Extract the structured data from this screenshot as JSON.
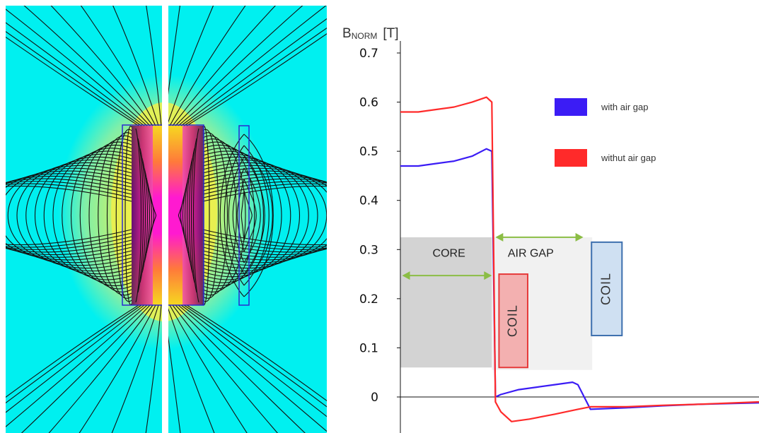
{
  "figure": {
    "panel_left": "magnetic flux density map with field lines",
    "panel_right": "normalized flux density profile"
  },
  "colors": {
    "with_gap": "#3b1cf5",
    "without_gap": "#ff2a2a",
    "core_region": "#d3d3d3",
    "airgap_region": "#f1f1f1",
    "coil_red_fill": "#f3b0b0",
    "coil_red_stroke": "#e63a3a",
    "coil_blue_fill": "#cfe0f2",
    "coil_blue_stroke": "#3d6fae",
    "arrow": "#8bbd45",
    "map_background": "#00f0f0"
  },
  "chart_data": {
    "type": "line",
    "ylabel_main": "B",
    "ylabel_sub": "NORM",
    "ylabel_unit": "[T]",
    "ylim": [
      -0.07,
      0.7
    ],
    "yticks": [
      0,
      0.1,
      0.2,
      0.3,
      0.4,
      0.5,
      0.6,
      0.7
    ],
    "ytick_labels": [
      "0",
      "0.1",
      "0.2",
      "0.3",
      "0.4",
      "0.5",
      "0.6",
      "0.7"
    ],
    "xlim": [
      0,
      100
    ],
    "grid": false,
    "legend_position": "top-right",
    "series": [
      {
        "name": "with air gap",
        "color_key": "with_gap",
        "x": [
          0,
          5,
          10,
          15,
          20,
          24,
          25.5,
          26.5,
          28,
          33,
          38,
          43,
          48,
          49.5,
          53,
          63,
          73,
          83,
          100
        ],
        "y": [
          0.47,
          0.47,
          0.475,
          0.48,
          0.49,
          0.505,
          0.5,
          0.0,
          0.005,
          0.015,
          0.02,
          0.025,
          0.03,
          0.025,
          -0.025,
          -0.022,
          -0.018,
          -0.015,
          -0.012
        ]
      },
      {
        "name": "withut air gap",
        "color_key": "without_gap",
        "x": [
          0,
          5,
          10,
          15,
          20,
          24,
          25.5,
          26.5,
          28,
          31,
          36,
          43,
          49.5,
          53,
          63,
          73,
          83,
          100
        ],
        "y": [
          0.58,
          0.58,
          0.585,
          0.59,
          0.6,
          0.61,
          0.6,
          -0.01,
          -0.03,
          -0.05,
          -0.045,
          -0.035,
          -0.025,
          -0.02,
          -0.02,
          -0.017,
          -0.015,
          -0.01
        ]
      }
    ],
    "regions": [
      {
        "label": "CORE",
        "x0": 0,
        "x1": 25.5,
        "y0": 0.06,
        "y1": 0.325,
        "color_key": "core_region"
      },
      {
        "label": "AIR GAP",
        "x0": 25.5,
        "x1": 53.5,
        "y0": 0.055,
        "y1": 0.325,
        "color_key": "airgap_region"
      }
    ],
    "coils": [
      {
        "label": "COIL",
        "x0": 27.5,
        "x1": 35.5,
        "y0": 0.06,
        "y1": 0.25,
        "fill_key": "coil_red_fill",
        "stroke_key": "coil_red_stroke"
      },
      {
        "label": "COIL",
        "x0": 53.3,
        "x1": 61.8,
        "y0": 0.125,
        "y1": 0.315,
        "fill_key": "coil_blue_fill",
        "stroke_key": "coil_blue_stroke"
      }
    ],
    "arrows": [
      {
        "x0": 0.5,
        "x1": 25.5,
        "y": 0.247
      },
      {
        "x0": 26.5,
        "x1": 51,
        "y": 0.325
      }
    ]
  }
}
